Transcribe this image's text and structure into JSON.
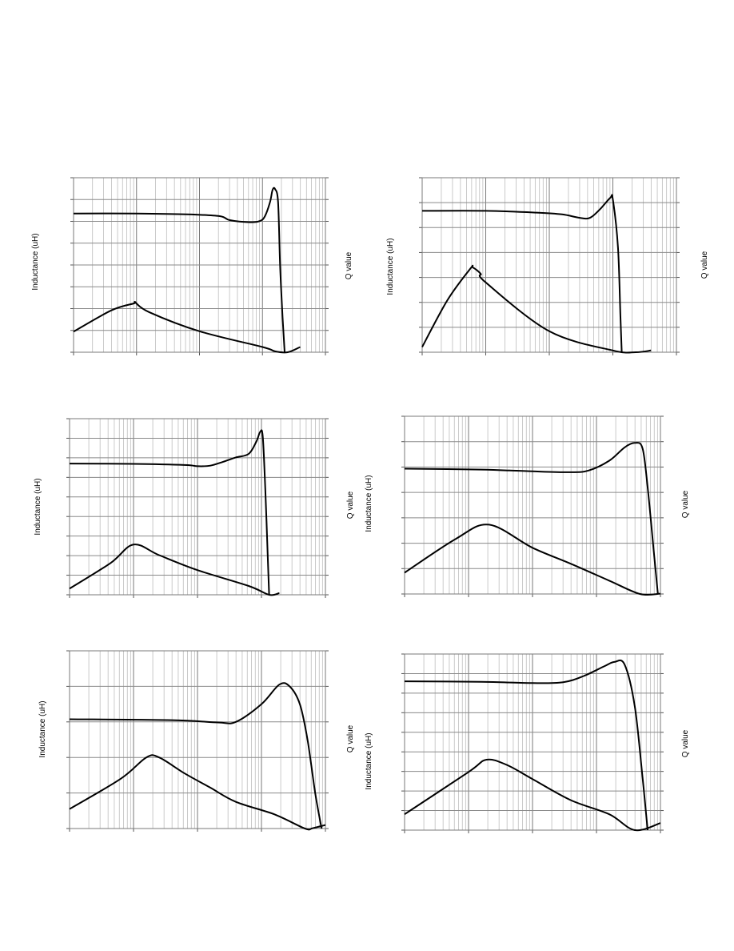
{
  "page": {
    "title": ""
  },
  "chart_data": [
    {
      "id": "p1",
      "type": "line",
      "x_scale": "log",
      "grid": true,
      "ylabel_left": "Inductance (uH)",
      "ylabel_right": "Q value",
      "series": [
        {
          "points": [
            [
              0,
              0.118
            ],
            [
              0.15,
              0.24
            ],
            [
              0.24,
              0.28
            ],
            [
              0.245,
              0.285
            ],
            [
              0.3,
              0.23
            ],
            [
              0.5,
              0.12
            ],
            [
              0.75,
              0.03
            ],
            [
              0.8,
              0.005
            ],
            [
              0.85,
              0.0
            ],
            [
              0.9,
              0.03
            ]
          ]
        },
        {
          "points": [
            [
              0,
              0.795
            ],
            [
              0.25,
              0.795
            ],
            [
              0.45,
              0.79
            ],
            [
              0.58,
              0.78
            ],
            [
              0.62,
              0.757
            ],
            [
              0.7,
              0.745
            ],
            [
              0.74,
              0.752
            ],
            [
              0.76,
              0.78
            ],
            [
              0.78,
              0.86
            ],
            [
              0.79,
              0.93
            ],
            [
              0.8,
              0.935
            ],
            [
              0.812,
              0.86
            ],
            [
              0.82,
              0.5
            ],
            [
              0.83,
              0.2
            ],
            [
              0.838,
              0.0
            ]
          ]
        }
      ]
    },
    {
      "id": "p2",
      "type": "line",
      "x_scale": "log",
      "grid": true,
      "ylabel_left": "Inductance (uH)",
      "ylabel_right": "Q value",
      "series": [
        {
          "points": [
            [
              0,
              0.03
            ],
            [
              0.1,
              0.3
            ],
            [
              0.19,
              0.48
            ],
            [
              0.2,
              0.485
            ],
            [
              0.23,
              0.45
            ],
            [
              0.25,
              0.4
            ],
            [
              0.5,
              0.12
            ],
            [
              0.75,
              0.01
            ],
            [
              0.84,
              0.0
            ],
            [
              0.9,
              0.01
            ]
          ]
        },
        {
          "points": [
            [
              0,
              0.81
            ],
            [
              0.25,
              0.81
            ],
            [
              0.45,
              0.8
            ],
            [
              0.55,
              0.79
            ],
            [
              0.62,
              0.77
            ],
            [
              0.66,
              0.77
            ],
            [
              0.7,
              0.82
            ],
            [
              0.74,
              0.885
            ],
            [
              0.75,
              0.875
            ],
            [
              0.77,
              0.6
            ],
            [
              0.78,
              0.2
            ],
            [
              0.785,
              0.0
            ]
          ]
        }
      ]
    },
    {
      "id": "p3",
      "type": "line",
      "x_scale": "log",
      "grid": true,
      "ylabel_left": "Inductance (uH)",
      "ylabel_right": "Q value",
      "series": [
        {
          "points": [
            [
              0,
              0.035
            ],
            [
              0.16,
              0.18
            ],
            [
              0.25,
              0.285
            ],
            [
              0.35,
              0.225
            ],
            [
              0.5,
              0.14
            ],
            [
              0.7,
              0.05
            ],
            [
              0.78,
              0.0
            ],
            [
              0.82,
              0.01
            ]
          ]
        },
        {
          "points": [
            [
              0,
              0.745
            ],
            [
              0.25,
              0.743
            ],
            [
              0.45,
              0.737
            ],
            [
              0.5,
              0.73
            ],
            [
              0.55,
              0.733
            ],
            [
              0.6,
              0.755
            ],
            [
              0.65,
              0.78
            ],
            [
              0.7,
              0.8
            ],
            [
              0.73,
              0.87
            ],
            [
              0.745,
              0.925
            ],
            [
              0.755,
              0.9
            ],
            [
              0.765,
              0.6
            ],
            [
              0.775,
              0.2
            ],
            [
              0.78,
              0.0
            ]
          ]
        }
      ]
    },
    {
      "id": "p4",
      "type": "line",
      "x_scale": "log",
      "grid": true,
      "ylabel_left": "Inductance (uH)",
      "ylabel_right": "Q value",
      "series": [
        {
          "points": [
            [
              0,
              0.12
            ],
            [
              0.2,
              0.31
            ],
            [
              0.33,
              0.39
            ],
            [
              0.5,
              0.26
            ],
            [
              0.65,
              0.17
            ],
            [
              0.8,
              0.075
            ],
            [
              0.92,
              0.0
            ],
            [
              1.0,
              0.002
            ]
          ]
        },
        {
          "points": [
            [
              0,
              0.705
            ],
            [
              0.3,
              0.7
            ],
            [
              0.5,
              0.69
            ],
            [
              0.65,
              0.685
            ],
            [
              0.72,
              0.695
            ],
            [
              0.8,
              0.75
            ],
            [
              0.86,
              0.825
            ],
            [
              0.9,
              0.85
            ],
            [
              0.93,
              0.82
            ],
            [
              0.95,
              0.6
            ],
            [
              0.97,
              0.3
            ],
            [
              0.99,
              0.0
            ]
          ]
        }
      ]
    },
    {
      "id": "p5",
      "type": "line",
      "x_scale": "log",
      "grid": true,
      "ylabel_left": "Inductance (uH)",
      "ylabel_right": "Q value",
      "series": [
        {
          "points": [
            [
              0,
              0.11
            ],
            [
              0.2,
              0.28
            ],
            [
              0.3,
              0.4
            ],
            [
              0.35,
              0.4
            ],
            [
              0.45,
              0.31
            ],
            [
              0.55,
              0.23
            ],
            [
              0.65,
              0.15
            ],
            [
              0.8,
              0.08
            ],
            [
              0.92,
              0.0
            ],
            [
              0.95,
              0.002
            ],
            [
              1.0,
              0.02
            ]
          ]
        },
        {
          "points": [
            [
              0,
              0.615
            ],
            [
              0.4,
              0.61
            ],
            [
              0.58,
              0.597
            ],
            [
              0.65,
              0.6
            ],
            [
              0.75,
              0.7
            ],
            [
              0.82,
              0.81
            ],
            [
              0.86,
              0.8
            ],
            [
              0.9,
              0.7
            ],
            [
              0.93,
              0.5
            ],
            [
              0.96,
              0.2
            ],
            [
              0.985,
              0.0
            ]
          ]
        }
      ]
    },
    {
      "id": "p6",
      "type": "line",
      "x_scale": "log",
      "grid": true,
      "ylabel_left": "Inductance (uH)",
      "ylabel_right": "Q value",
      "series": [
        {
          "points": [
            [
              0,
              0.09
            ],
            [
              0.25,
              0.33
            ],
            [
              0.32,
              0.4
            ],
            [
              0.4,
              0.37
            ],
            [
              0.5,
              0.29
            ],
            [
              0.65,
              0.17
            ],
            [
              0.8,
              0.09
            ],
            [
              0.9,
              0.0
            ],
            [
              1.0,
              0.04
            ]
          ]
        },
        {
          "points": [
            [
              0,
              0.845
            ],
            [
              0.3,
              0.842
            ],
            [
              0.5,
              0.835
            ],
            [
              0.62,
              0.84
            ],
            [
              0.7,
              0.875
            ],
            [
              0.78,
              0.93
            ],
            [
              0.82,
              0.955
            ],
            [
              0.86,
              0.94
            ],
            [
              0.9,
              0.7
            ],
            [
              0.93,
              0.3
            ],
            [
              0.95,
              0.0
            ]
          ]
        }
      ]
    }
  ]
}
